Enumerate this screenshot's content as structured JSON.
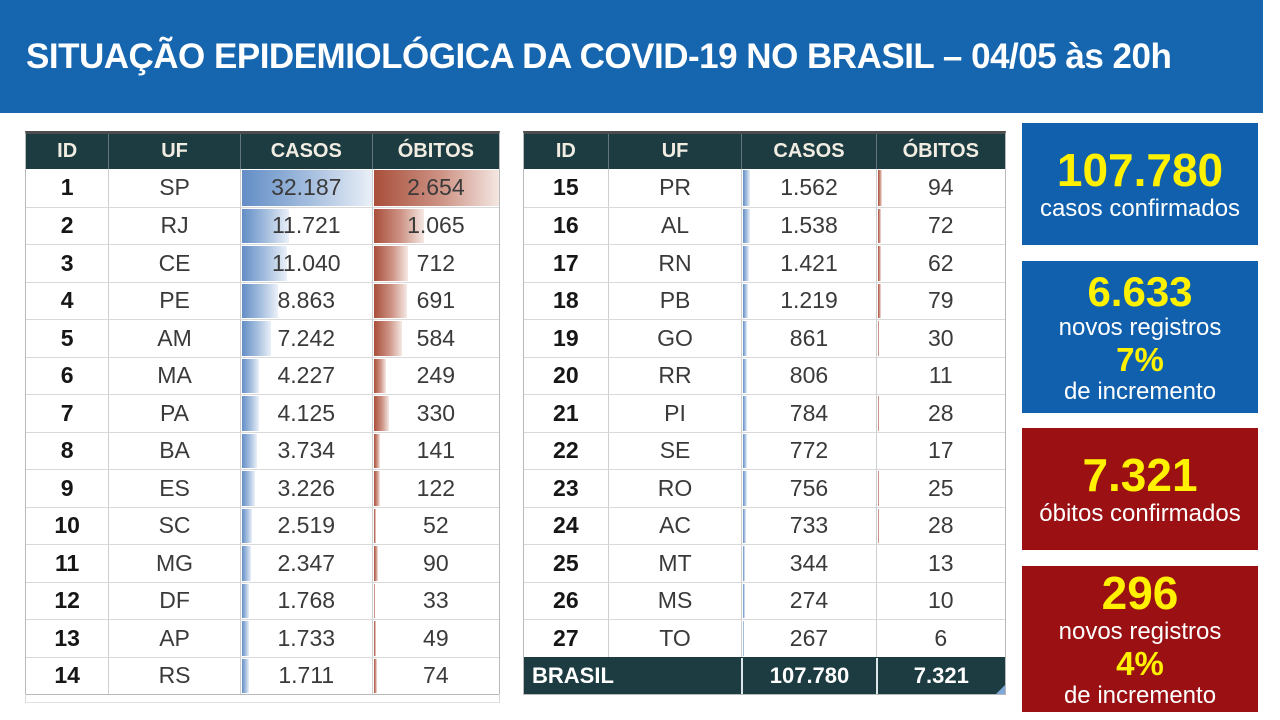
{
  "header": {
    "title": "SITUAÇÃO EPIDEMIOLÓGICA DA COVID-19 NO BRASIL – 04/05 às 20h"
  },
  "colors": {
    "banner_blue": "#1565AF",
    "card_blue": "#1160AD",
    "card_red": "#9A1013",
    "accent_yellow": "#FFF100",
    "table_header_teal": "#1D3C41",
    "databar_blue": "#638EC6",
    "databar_red": "#A94F3B"
  },
  "chart_data": {
    "type": "table",
    "title": "SITUAÇÃO EPIDEMIOLÓGICA DA COVID-19 NO BRASIL – 04/05 às 20h",
    "columns": [
      "ID",
      "UF",
      "CASOS",
      "ÓBITOS"
    ],
    "layout": "two side-by-side tables: rows 1-14 left, rows 15-27 right; CASOS has blue gradient data bars scaled to max 32187, ÓBITOS has red gradient data bars scaled to max 2654",
    "rows": [
      [
        1,
        "SP",
        32187,
        2654
      ],
      [
        2,
        "RJ",
        11721,
        1065
      ],
      [
        3,
        "CE",
        11040,
        712
      ],
      [
        4,
        "PE",
        8863,
        691
      ],
      [
        5,
        "AM",
        7242,
        584
      ],
      [
        6,
        "MA",
        4227,
        249
      ],
      [
        7,
        "PA",
        4125,
        330
      ],
      [
        8,
        "BA",
        3734,
        141
      ],
      [
        9,
        "ES",
        3226,
        122
      ],
      [
        10,
        "SC",
        2519,
        52
      ],
      [
        11,
        "MG",
        2347,
        90
      ],
      [
        12,
        "DF",
        1768,
        33
      ],
      [
        13,
        "AP",
        1733,
        49
      ],
      [
        14,
        "RS",
        1711,
        74
      ],
      [
        15,
        "PR",
        1562,
        94
      ],
      [
        16,
        "AL",
        1538,
        72
      ],
      [
        17,
        "RN",
        1421,
        62
      ],
      [
        18,
        "PB",
        1219,
        79
      ],
      [
        19,
        "GO",
        861,
        30
      ],
      [
        20,
        "RR",
        806,
        11
      ],
      [
        21,
        "PI",
        784,
        28
      ],
      [
        22,
        "SE",
        772,
        17
      ],
      [
        23,
        "RO",
        756,
        25
      ],
      [
        24,
        "AC",
        733,
        28
      ],
      [
        25,
        "MT",
        344,
        13
      ],
      [
        26,
        "MS",
        274,
        10
      ],
      [
        27,
        "TO",
        267,
        6
      ]
    ],
    "total": {
      "label": "BRASIL",
      "casos": 107780,
      "obitos": 7321,
      "casos_display": "107.780",
      "obitos_display": "7.321"
    }
  },
  "cards": [
    {
      "value": "107.780",
      "label": "casos confirmados"
    },
    {
      "value": "6.633",
      "label": "novos registros",
      "percent": "7%",
      "sublabel": "de incremento"
    },
    {
      "value": "7.321",
      "label": "óbitos confirmados"
    },
    {
      "value": "296",
      "label": "novos registros",
      "percent": "4%",
      "sublabel": "de incremento"
    }
  ]
}
